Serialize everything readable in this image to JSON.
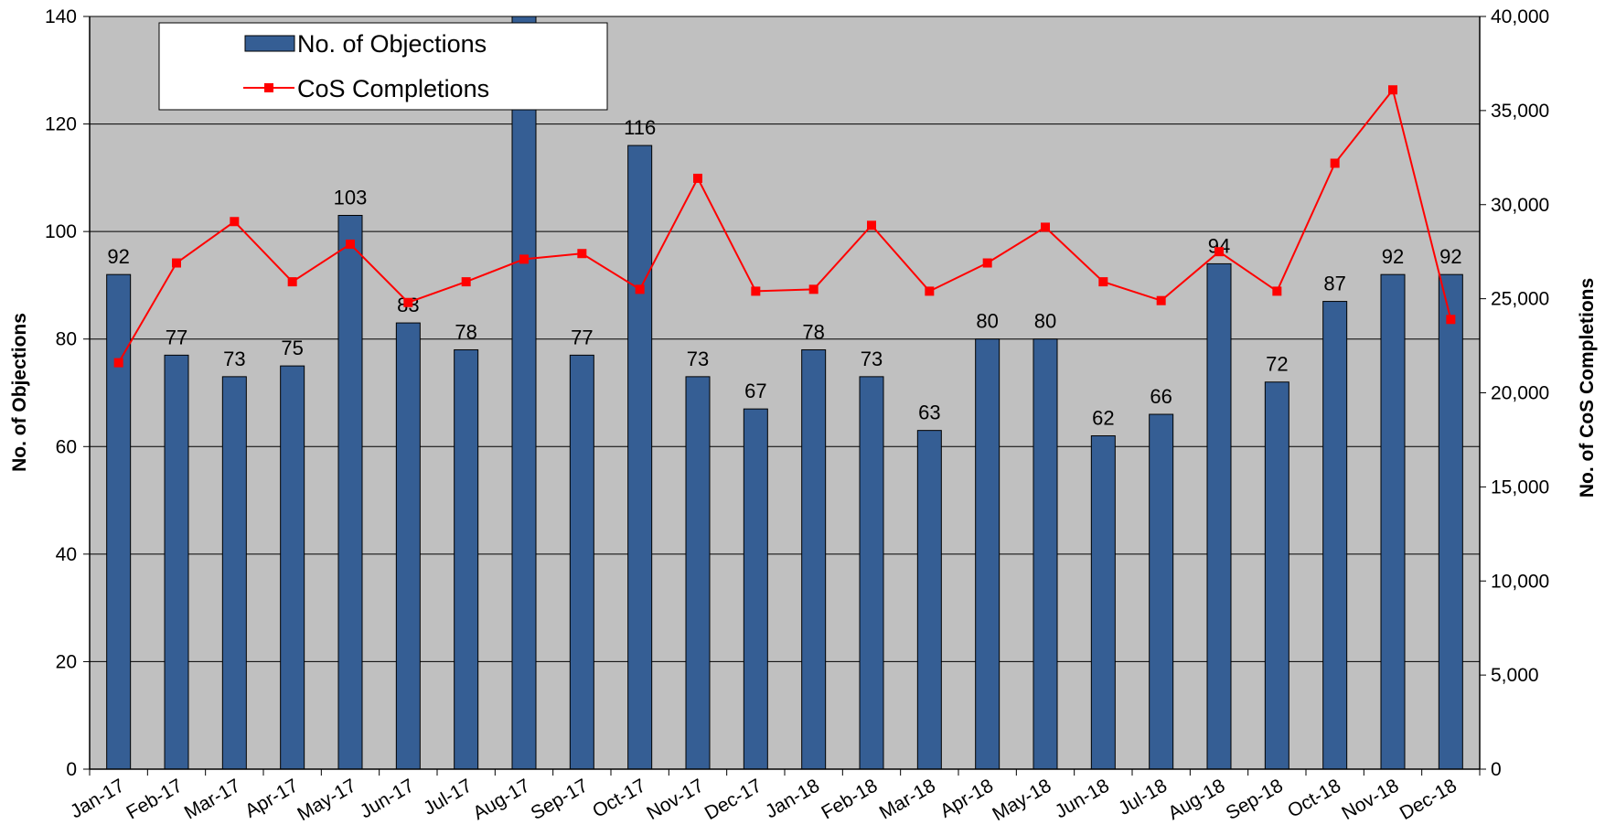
{
  "chart_data": {
    "type": "bar",
    "categories": [
      "Jan-17",
      "Feb-17",
      "Mar-17",
      "Apr-17",
      "May-17",
      "Jun-17",
      "Jul-17",
      "Aug-17",
      "Sep-17",
      "Oct-17",
      "Nov-17",
      "Dec-17",
      "Jan-18",
      "Feb-18",
      "Mar-18",
      "Apr-18",
      "May-18",
      "Jun-18",
      "Jul-18",
      "Aug-18",
      "Sep-18",
      "Oct-18",
      "Nov-18",
      "Dec-18"
    ],
    "series": [
      {
        "name": "No. of Objections",
        "type": "bar",
        "axis": "left",
        "color": "#355E94",
        "values": [
          92,
          77,
          73,
          75,
          103,
          83,
          78,
          140,
          77,
          116,
          73,
          67,
          78,
          73,
          63,
          80,
          80,
          62,
          66,
          94,
          72,
          87,
          92,
          92
        ],
        "labels": [
          "92",
          "77",
          "73",
          "75",
          "103",
          "83",
          "78",
          "",
          "77",
          "116",
          "73",
          "67",
          "78",
          "73",
          "63",
          "80",
          "80",
          "62",
          "66",
          "94",
          "72",
          "87",
          "92",
          "92"
        ]
      },
      {
        "name": "CoS Completions",
        "type": "line",
        "axis": "right",
        "color": "#FF0000",
        "values": [
          21600,
          26900,
          29100,
          25900,
          27900,
          24800,
          25900,
          27100,
          27400,
          25500,
          31400,
          25400,
          25500,
          28900,
          25400,
          26900,
          28800,
          25900,
          24900,
          27500,
          25400,
          32200,
          36100,
          23900
        ]
      }
    ],
    "ylabel": "No. of Objections",
    "y2label": "No. of CoS Completions",
    "ylim": [
      0,
      140
    ],
    "y2lim": [
      0,
      40000
    ],
    "yticks": [
      "0",
      "20",
      "40",
      "60",
      "80",
      "100",
      "120",
      "140"
    ],
    "y2ticks": [
      "0",
      "5,000",
      "10,000",
      "15,000",
      "20,000",
      "25,000",
      "30,000",
      "35,000",
      "40,000"
    ],
    "legend": [
      "No. of Objections",
      "CoS Completions"
    ],
    "legend_position": "top-left",
    "grid": true,
    "plot_background": "#C0C0C0"
  }
}
